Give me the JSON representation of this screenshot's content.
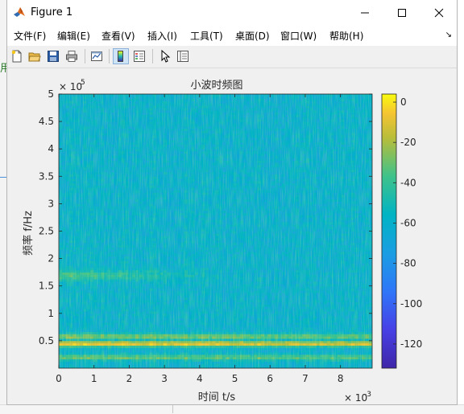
{
  "window": {
    "title": "Figure 1",
    "controls": {
      "minimize": "minimize",
      "maximize": "maximize",
      "close": "close"
    }
  },
  "menu": {
    "items": [
      {
        "label": "文件(F)"
      },
      {
        "label": "编辑(E)"
      },
      {
        "label": "查看(V)"
      },
      {
        "label": "插入(I)"
      },
      {
        "label": "工具(T)"
      },
      {
        "label": "桌面(D)"
      },
      {
        "label": "窗口(W)"
      },
      {
        "label": "帮助(H)"
      }
    ],
    "overflow_arrow": "↘"
  },
  "toolbar": {
    "icons": [
      "new-figure-icon",
      "open-file-icon",
      "save-icon",
      "print-icon",
      "link-plot-icon",
      "colorbar-icon",
      "legend-icon",
      "pointer-icon",
      "property-inspector-icon"
    ],
    "active": [
      "colorbar-icon"
    ]
  },
  "desktop": {
    "left_glyph": "用"
  },
  "chart_data": {
    "type": "heatmap",
    "title": "小波时频图",
    "xlabel": "时间 t/s",
    "ylabel": "频率 f/Hz",
    "xlim": [
      0,
      0.0089
    ],
    "ylim": [
      0,
      500000
    ],
    "x_ticks": [
      "0",
      "1",
      "2",
      "3",
      "4",
      "5",
      "6",
      "7",
      "8"
    ],
    "x_exponent": "× 10^-3",
    "x_exponent_base": "× 10",
    "x_exponent_power": "-3",
    "y_ticks": [
      "0.5",
      "1",
      "1.5",
      "2",
      "2.5",
      "3",
      "3.5",
      "4",
      "4.5",
      "5"
    ],
    "y_exponent": "× 10^5",
    "y_exponent_base": "× 10",
    "y_exponent_power": "5",
    "colorbar": {
      "range": [
        -132,
        4
      ],
      "ticks": [
        "0",
        "-20",
        "-40",
        "-60",
        "-80",
        "-100",
        "-120"
      ],
      "colormap": "parula"
    },
    "features": [
      {
        "description": "strong band",
        "freq_hz": 45000,
        "level_db": -5
      },
      {
        "description": "secondary band",
        "freq_hz": 58000,
        "level_db": -25
      },
      {
        "description": "low band",
        "freq_hz": 20000,
        "level_db": -30
      },
      {
        "description": "energy near 1.7e5 Hz early in time",
        "freq_hz": 170000,
        "level_db": -35
      }
    ],
    "background_level_db": -60
  }
}
